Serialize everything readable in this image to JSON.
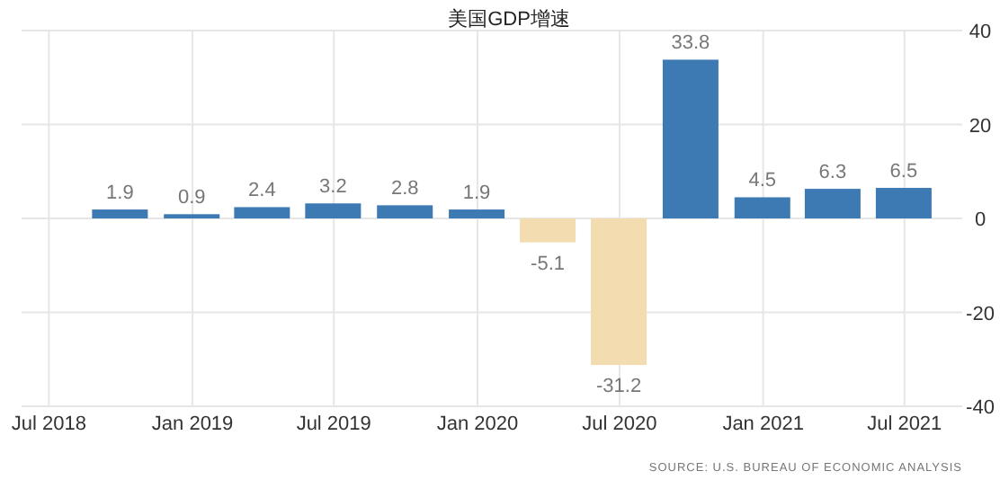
{
  "chart_data": {
    "type": "bar",
    "title": "美国GDP增速",
    "x": [
      "2018-09-30",
      "2018-12-31",
      "2019-03-31",
      "2019-06-30",
      "2019-09-30",
      "2019-12-31",
      "2020-03-31",
      "2020-06-30",
      "2020-09-30",
      "2020-12-31",
      "2021-03-31",
      "2021-06-30"
    ],
    "values": [
      1.9,
      0.9,
      2.4,
      3.2,
      2.8,
      1.9,
      -5.1,
      -31.2,
      33.8,
      4.5,
      6.3,
      6.5
    ],
    "colors": [
      "#3d7ab3",
      "#3d7ab3",
      "#3d7ab3",
      "#3d7ab3",
      "#3d7ab3",
      "#3d7ab3",
      "#f2dcb0",
      "#f2dcb0",
      "#3d7ab3",
      "#3d7ab3",
      "#3d7ab3",
      "#3d7ab3"
    ],
    "xlim": [
      "2018-05-27",
      "2021-09-13"
    ],
    "xticks": [
      {
        "value": "2018-07-01",
        "label": "Jul 2018"
      },
      {
        "value": "2019-01-01",
        "label": "Jan 2019"
      },
      {
        "value": "2019-07-01",
        "label": "Jul 2019"
      },
      {
        "value": "2020-01-01",
        "label": "Jan 2020"
      },
      {
        "value": "2020-07-01",
        "label": "Jul 2020"
      },
      {
        "value": "2021-01-01",
        "label": "Jan 2021"
      },
      {
        "value": "2021-07-01",
        "label": "Jul 2021"
      }
    ],
    "ylim": [
      -40,
      40
    ],
    "yticks": [
      -40,
      -20,
      0,
      20,
      40
    ],
    "grid": true,
    "data_labels": true,
    "annotations": [
      "SOURCE: U.S. BUREAU OF ECONOMIC ANALYSIS"
    ]
  }
}
